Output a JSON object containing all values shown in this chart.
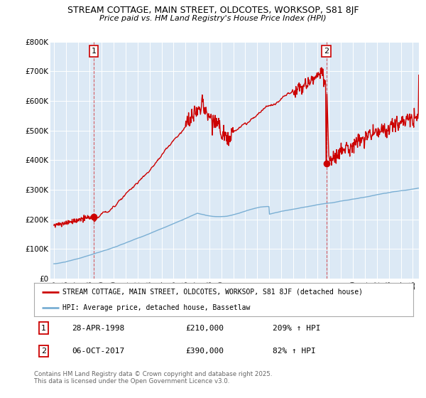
{
  "title1": "STREAM COTTAGE, MAIN STREET, OLDCOTES, WORKSOP, S81 8JF",
  "title2": "Price paid vs. HM Land Registry's House Price Index (HPI)",
  "legend_label1": "STREAM COTTAGE, MAIN STREET, OLDCOTES, WORKSOP, S81 8JF (detached house)",
  "legend_label2": "HPI: Average price, detached house, Bassetlaw",
  "annotation1_date": "28-APR-1998",
  "annotation1_price": "£210,000",
  "annotation1_hpi": "209% ↑ HPI",
  "annotation2_date": "06-OCT-2017",
  "annotation2_price": "£390,000",
  "annotation2_hpi": "82% ↑ HPI",
  "footer": "Contains HM Land Registry data © Crown copyright and database right 2025.\nThis data is licensed under the Open Government Licence v3.0.",
  "red_color": "#cc0000",
  "blue_color": "#7aafd4",
  "marker1_year": 1998.33,
  "marker1_value": 210000,
  "marker2_year": 2017.77,
  "marker2_value": 390000,
  "ylim_max": 800000,
  "xlim_start": 1995.0,
  "xlim_end": 2025.5,
  "bg_color": "#dce9f5"
}
